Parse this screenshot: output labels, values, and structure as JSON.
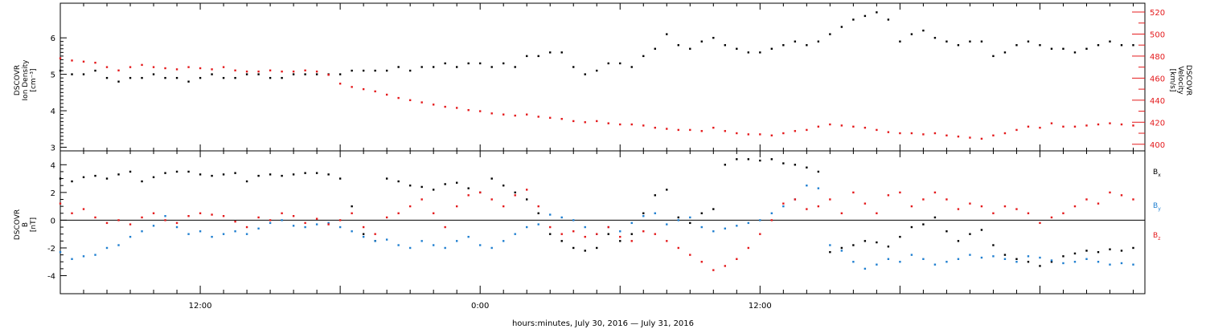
{
  "chart_data": [
    {
      "type": "scatter",
      "name": "plasma",
      "ylabel_left": [
        "DSCOVR",
        "Ion Density",
        "[cm⁻³]"
      ],
      "ylabel_right": [
        "DSCOVR",
        "Velocity",
        "[km/s]"
      ],
      "yticks_left": [
        "3",
        "4",
        "5",
        "6"
      ],
      "yticks_right": [
        "400",
        "420",
        "440",
        "460",
        "480",
        "500",
        "520"
      ],
      "ylim_left": [
        2.9,
        6.95
      ],
      "ylim_right": [
        394,
        528
      ],
      "grid": false,
      "series": [
        {
          "axis": "left",
          "color": "#000000",
          "x": [
            0,
            0.5,
            1,
            1.5,
            2,
            2.5,
            3,
            3.5,
            4,
            4.5,
            5,
            5.5,
            6,
            6.5,
            7,
            7.5,
            8,
            8.5,
            9,
            9.5,
            10,
            10.5,
            11,
            11.5,
            12,
            12.5,
            13,
            13.5,
            14,
            14.5,
            15,
            15.5,
            16,
            16.5,
            17,
            17.5,
            18,
            18.5,
            19,
            19.5,
            20,
            20.5,
            21,
            21.5,
            22,
            22.5,
            23,
            23.5,
            24,
            24.5,
            25,
            25.5,
            26,
            26.5,
            27,
            27.5,
            28,
            28.5,
            29,
            29.5,
            30,
            30.5,
            31,
            31.5,
            32,
            32.5,
            33,
            33.5,
            34,
            34.5,
            35,
            35.5,
            36,
            36.5,
            37,
            37.5,
            38,
            38.5,
            39,
            39.5,
            40,
            40.5,
            41,
            41.5,
            42,
            42.5,
            43,
            43.5,
            44,
            44.5,
            45,
            45.5,
            46
          ],
          "y": [
            5.1,
            5.0,
            5.0,
            5.1,
            4.9,
            4.8,
            4.9,
            4.9,
            5.0,
            4.9,
            4.9,
            4.8,
            4.9,
            5.0,
            4.9,
            4.9,
            5.0,
            5.0,
            4.9,
            4.9,
            5.0,
            5.0,
            5.0,
            5.0,
            5.0,
            5.1,
            5.1,
            5.1,
            5.1,
            5.2,
            5.1,
            5.2,
            5.2,
            5.3,
            5.2,
            5.3,
            5.3,
            5.2,
            5.3,
            5.2,
            5.5,
            5.5,
            5.6,
            5.6,
            5.2,
            5.0,
            5.1,
            5.3,
            5.3,
            5.2,
            5.5,
            5.7,
            6.1,
            5.8,
            5.7,
            5.9,
            6.0,
            5.8,
            5.7,
            5.6,
            5.6,
            5.7,
            5.8,
            5.9,
            5.8,
            5.9,
            6.1,
            6.3,
            6.5,
            6.6,
            6.7,
            6.5,
            5.9,
            6.1,
            6.2,
            6.0,
            5.9,
            5.8,
            5.9,
            5.9,
            5.5,
            5.6,
            5.8,
            5.9,
            5.8,
            5.7,
            5.7,
            5.6,
            5.7,
            5.8,
            5.9,
            5.8,
            5.8
          ]
        },
        {
          "axis": "right",
          "color": "#e41a1c",
          "x": [
            0,
            0.5,
            1,
            1.5,
            2,
            2.5,
            3,
            3.5,
            4,
            4.5,
            5,
            5.5,
            6,
            6.5,
            7,
            7.5,
            8,
            8.5,
            9,
            9.5,
            10,
            10.5,
            11,
            11.5,
            12,
            12.5,
            13,
            13.5,
            14,
            14.5,
            15,
            15.5,
            16,
            16.5,
            17,
            17.5,
            18,
            18.5,
            19,
            19.5,
            20,
            20.5,
            21,
            21.5,
            22,
            22.5,
            23,
            23.5,
            24,
            24.5,
            25,
            25.5,
            26,
            26.5,
            27,
            27.5,
            28,
            28.5,
            29,
            29.5,
            30,
            30.5,
            31,
            31.5,
            32,
            32.5,
            33,
            33.5,
            34,
            34.5,
            35,
            35.5,
            36,
            36.5,
            37,
            37.5,
            38,
            38.5,
            39,
            39.5,
            40,
            40.5,
            41,
            41.5,
            42,
            42.5,
            43,
            43.5,
            44,
            44.5,
            45,
            45.5,
            46
          ],
          "y": [
            478,
            476,
            475,
            474,
            470,
            467,
            470,
            472,
            470,
            469,
            468,
            470,
            469,
            468,
            470,
            467,
            466,
            466,
            467,
            466,
            466,
            467,
            466,
            463,
            455,
            452,
            450,
            448,
            445,
            442,
            440,
            438,
            436,
            434,
            433,
            431,
            430,
            428,
            427,
            426,
            427,
            425,
            424,
            423,
            421,
            420,
            421,
            419,
            418,
            418,
            417,
            415,
            414,
            413,
            413,
            412,
            415,
            412,
            410,
            409,
            409,
            408,
            410,
            412,
            413,
            416,
            418,
            417,
            416,
            415,
            413,
            411,
            410,
            410,
            409,
            410,
            408,
            407,
            406,
            405,
            408,
            410,
            413,
            416,
            415,
            419,
            416,
            416,
            417,
            418,
            419,
            418,
            417
          ]
        }
      ]
    },
    {
      "type": "scatter",
      "name": "magnetic field",
      "ylabel": [
        "DSCOVR",
        "B",
        "[nT]"
      ],
      "yticks": [
        "-4",
        "-2",
        "0",
        "2",
        "4"
      ],
      "ylim": [
        -5.3,
        5.0
      ],
      "zero_line": true,
      "grid": false,
      "series": [
        {
          "name": "B",
          "subscript": "x",
          "color": "#000000",
          "x": [
            0,
            0.5,
            1,
            1.5,
            2,
            2.5,
            3,
            3.5,
            4,
            4.5,
            5,
            5.5,
            6,
            6.5,
            7,
            7.5,
            8,
            8.5,
            9,
            9.5,
            10,
            10.5,
            11,
            11.5,
            12,
            12.5,
            13,
            13.5,
            14,
            14.5,
            15,
            15.5,
            16,
            16.5,
            17,
            17.5,
            18,
            18.5,
            19,
            19.5,
            20,
            20.5,
            21,
            21.5,
            22,
            22.5,
            23,
            23.5,
            24,
            24.5,
            25,
            25.5,
            26,
            26.5,
            27,
            27.5,
            28,
            28.5,
            29,
            29.5,
            30,
            30.5,
            31,
            31.5,
            32,
            32.5,
            33,
            33.5,
            34,
            34.5,
            35,
            35.5,
            36,
            36.5,
            37,
            37.5,
            38,
            38.5,
            39,
            39.5,
            40,
            40.5,
            41,
            41.5,
            42,
            42.5,
            43,
            43.5,
            44,
            44.5,
            45,
            45.5,
            46
          ],
          "y": [
            3.0,
            2.8,
            3.1,
            3.2,
            3.0,
            3.3,
            3.5,
            2.8,
            3.1,
            3.4,
            3.5,
            3.5,
            3.3,
            3.2,
            3.3,
            3.4,
            2.8,
            3.2,
            3.3,
            3.2,
            3.3,
            3.4,
            3.4,
            3.3,
            3.0,
            1.0,
            -1.0,
            -1.5,
            3.0,
            2.8,
            2.5,
            2.4,
            2.2,
            2.6,
            2.7,
            2.3,
            2.0,
            3.0,
            2.5,
            2.0,
            1.5,
            0.5,
            -1.0,
            -1.5,
            -2.0,
            -2.2,
            -2.0,
            -1.0,
            -1.5,
            -1.0,
            0.5,
            1.8,
            2.2,
            0.2,
            -0.2,
            0.5,
            0.8,
            4.0,
            4.4,
            4.4,
            4.3,
            4.4,
            4.1,
            4.0,
            3.8,
            3.5,
            -2.3,
            -2.0,
            -1.8,
            -1.5,
            -1.6,
            -1.9,
            -1.2,
            -0.5,
            -0.3,
            0.2,
            -0.8,
            -1.5,
            -1.0,
            -0.7,
            -1.8,
            -2.5,
            -2.8,
            -3.0,
            -3.3,
            -3.0,
            -2.6,
            -2.4,
            -2.2,
            -2.3,
            -2.1,
            -2.2,
            -2.0
          ]
        },
        {
          "name": "B",
          "subscript": "y",
          "color": "#1f7fd0",
          "x": [
            0,
            0.5,
            1,
            1.5,
            2,
            2.5,
            3,
            3.5,
            4,
            4.5,
            5,
            5.5,
            6,
            6.5,
            7,
            7.5,
            8,
            8.5,
            9,
            9.5,
            10,
            10.5,
            11,
            11.5,
            12,
            12.5,
            13,
            13.5,
            14,
            14.5,
            15,
            15.5,
            16,
            16.5,
            17,
            17.5,
            18,
            18.5,
            19,
            19.5,
            20,
            20.5,
            21,
            21.5,
            22,
            22.5,
            23,
            23.5,
            24,
            24.5,
            25,
            25.5,
            26,
            26.5,
            27,
            27.5,
            28,
            28.5,
            29,
            29.5,
            30,
            30.5,
            31,
            31.5,
            32,
            32.5,
            33,
            33.5,
            34,
            34.5,
            35,
            35.5,
            36,
            36.5,
            37,
            37.5,
            38,
            38.5,
            39,
            39.5,
            40,
            40.5,
            41,
            41.5,
            42,
            42.5,
            43,
            43.5,
            44,
            44.5,
            45,
            45.5,
            46
          ],
          "y": [
            -2.3,
            -2.8,
            -2.6,
            -2.5,
            -2.0,
            -1.8,
            -1.2,
            -0.8,
            -0.4,
            0.3,
            -0.5,
            -1.0,
            -0.8,
            -1.2,
            -1.0,
            -0.8,
            -1.0,
            -0.6,
            -0.2,
            0.0,
            -0.4,
            -0.5,
            -0.3,
            -0.2,
            -0.5,
            -0.8,
            -1.2,
            -1.5,
            -1.4,
            -1.8,
            -2.0,
            -1.5,
            -1.8,
            -2.0,
            -1.5,
            -1.2,
            -1.8,
            -2.0,
            -1.5,
            -1.0,
            -0.5,
            -0.3,
            0.4,
            0.2,
            0.0,
            -0.5,
            -1.0,
            -0.5,
            -0.8,
            -0.2,
            0.3,
            0.5,
            -0.3,
            0.0,
            0.2,
            -0.5,
            -0.8,
            -0.6,
            -0.4,
            -0.2,
            0.0,
            0.5,
            1.0,
            1.5,
            2.5,
            2.3,
            -1.8,
            -2.2,
            -3.0,
            -3.5,
            -3.2,
            -2.8,
            -3.0,
            -2.5,
            -2.8,
            -3.2,
            -3.0,
            -2.8,
            -2.5,
            -2.7,
            -2.6,
            -2.8,
            -3.0,
            -2.6,
            -2.7,
            -2.9,
            -3.1,
            -3.0,
            -2.8,
            -3.0,
            -3.2,
            -3.1,
            -3.2
          ]
        },
        {
          "name": "B",
          "subscript": "z",
          "color": "#e41a1c",
          "x": [
            0,
            0.5,
            1,
            1.5,
            2,
            2.5,
            3,
            3.5,
            4,
            4.5,
            5,
            5.5,
            6,
            6.5,
            7,
            7.5,
            8,
            8.5,
            9,
            9.5,
            10,
            10.5,
            11,
            11.5,
            12,
            12.5,
            13,
            13.5,
            14,
            14.5,
            15,
            15.5,
            16,
            16.5,
            17,
            17.5,
            18,
            18.5,
            19,
            19.5,
            20,
            20.5,
            21,
            21.5,
            22,
            22.5,
            23,
            23.5,
            24,
            24.5,
            25,
            25.5,
            26,
            26.5,
            27,
            27.5,
            28,
            28.5,
            29,
            29.5,
            30,
            30.5,
            31,
            31.5,
            32,
            32.5,
            33,
            33.5,
            34,
            34.5,
            35,
            35.5,
            36,
            36.5,
            37,
            37.5,
            38,
            38.5,
            39,
            39.5,
            40,
            40.5,
            41,
            41.5,
            42,
            42.5,
            43,
            43.5,
            44,
            44.5,
            45,
            45.5,
            46
          ],
          "y": [
            1.2,
            0.5,
            0.8,
            0.2,
            -0.2,
            0.0,
            -0.3,
            0.2,
            0.5,
            0.0,
            -0.2,
            0.3,
            0.5,
            0.4,
            0.3,
            -0.1,
            -0.5,
            0.2,
            0.0,
            0.5,
            0.3,
            -0.2,
            0.1,
            -0.3,
            0.0,
            0.5,
            -0.5,
            -1.0,
            0.2,
            0.5,
            1.0,
            1.5,
            0.5,
            -0.5,
            1.0,
            1.8,
            2.0,
            1.5,
            1.0,
            1.8,
            2.2,
            1.0,
            -0.5,
            -1.0,
            -0.8,
            -1.2,
            -1.0,
            -0.5,
            -1.2,
            -1.5,
            -0.8,
            -1.0,
            -1.5,
            -2.0,
            -2.5,
            -3.0,
            -3.6,
            -3.3,
            -2.8,
            -2.0,
            -1.0,
            0.0,
            1.2,
            1.5,
            0.8,
            1.0,
            1.5,
            0.5,
            2.0,
            1.2,
            0.5,
            1.8,
            2.0,
            1.0,
            1.5,
            2.0,
            1.5,
            0.8,
            1.2,
            1.0,
            0.5,
            1.0,
            0.8,
            0.5,
            -0.2,
            0.2,
            0.5,
            1.0,
            1.5,
            1.2,
            2.0,
            1.8,
            1.5
          ]
        }
      ]
    }
  ],
  "x_axis": {
    "label": "hours:minutes, July 30, 2016 — July 31, 2016",
    "tick_labels": [
      {
        "hours": 6,
        "label": "12:00"
      },
      {
        "hours": 18,
        "label": "0:00"
      },
      {
        "hours": 30,
        "label": "12:00"
      }
    ],
    "range_hours": [
      0,
      46.5
    ]
  },
  "colors": {
    "black": "#000000",
    "red": "#e41a1c",
    "blue": "#1f7fd0"
  }
}
